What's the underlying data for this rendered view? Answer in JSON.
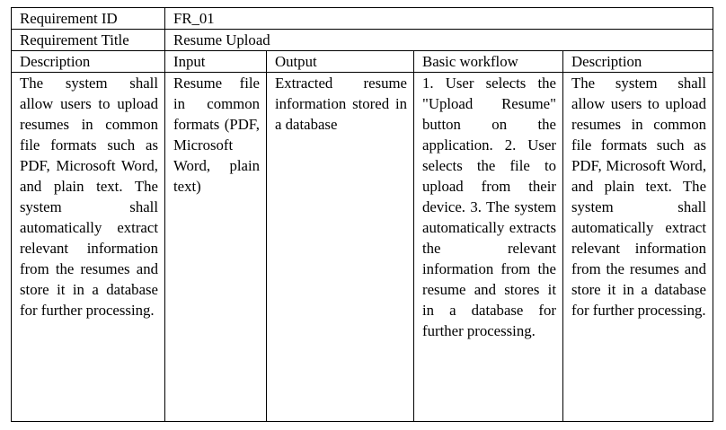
{
  "requirement_id": {
    "label": "Requirement ID",
    "value": "FR_01"
  },
  "requirement_title": {
    "label": "Requirement Title",
    "value": "Resume Upload"
  },
  "columns": [
    "Description",
    "Input",
    "Output",
    "Basic workflow",
    "Description"
  ],
  "row": {
    "description": "The system shall allow users to upload resumes in common file formats such as PDF, Microsoft Word, and plain text. The system shall automatically extract relevant information from the resumes and store it in a database for further processing.",
    "input": "Resume file in common formats (PDF, Microsoft Word, plain text)",
    "output": "Extracted resume information stored in a database",
    "workflow": "1. User selects the \"Upload Resume\" button on the application. 2. User selects the file to upload from their device. 3. The system automatically extracts the relevant information from the resume and stores it in a database for further processing.",
    "description2": "The system shall allow users to upload resumes in common file formats such as PDF, Microsoft Word, and plain text. The system shall automatically extract relevant information from the resumes and store it in a database for further processing."
  }
}
